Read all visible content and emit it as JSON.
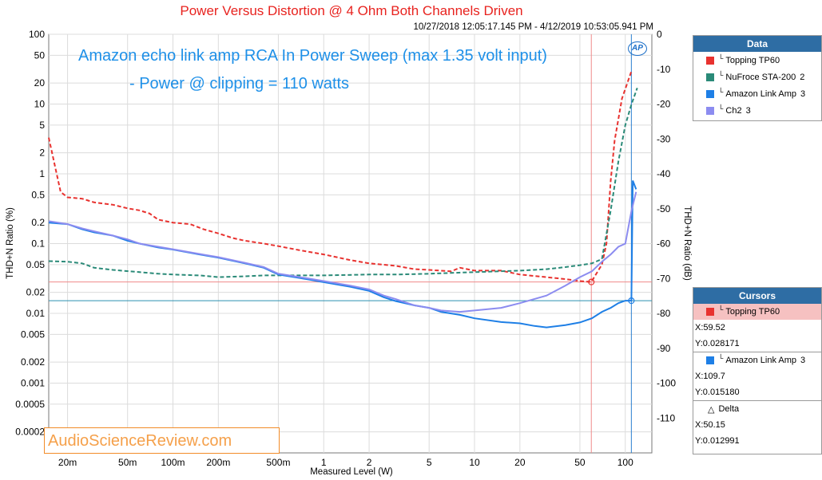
{
  "title": "Power Versus Distortion @ 4 Ohm Both Channels Driven",
  "timestamp": "10/27/2018 12:05:17.145 PM - 4/12/2019 10:53:05.941 PM",
  "annotation_line1": "Amazon echo link amp RCA In Power Sweep (max 1.35 volt input)",
  "annotation_line2": "- Power @ clipping = 110 watts",
  "watermark": "AudioScienceReview.com",
  "ap_logo": "AP",
  "legend": {
    "header": "Data",
    "items": [
      {
        "label": "Topping TP60",
        "index": "",
        "color": "#e8322f"
      },
      {
        "label": "NuFroce STA-200",
        "index": "2",
        "color": "#2a8a78"
      },
      {
        "label": "Amazon Link Amp",
        "index": "3",
        "color": "#1e7fe6"
      },
      {
        "label": "Ch2",
        "index": "3",
        "color": "#8c8cf0"
      }
    ]
  },
  "cursors": {
    "header": "Cursors",
    "c1": {
      "label": "Topping TP60",
      "x": "X:59.52",
      "y": "Y:0.028171",
      "color": "#e8322f"
    },
    "c2": {
      "label": "Amazon Link Amp",
      "index": "3",
      "x": "X:109.7",
      "y": "Y:0.015180",
      "color": "#1e7fe6"
    },
    "delta": {
      "label": "Delta",
      "x": "X:50.15",
      "y": "Y:0.012991"
    }
  },
  "chart_data": {
    "type": "line",
    "title": "Power Versus Distortion @ 4 Ohm Both Channels Driven",
    "xlabel": "Measured Level (W)",
    "ylabel": "THD+N Ratio (%)",
    "y2label": "THD+N Ratio (dB)",
    "xscale": "log",
    "yscale": "log",
    "xlim": [
      0.015,
      150
    ],
    "ylim": [
      0.0001,
      100
    ],
    "y2lim": [
      -120,
      0
    ],
    "xticks": [
      {
        "v": 0.02,
        "label": "20m"
      },
      {
        "v": 0.05,
        "label": "50m"
      },
      {
        "v": 0.1,
        "label": "100m"
      },
      {
        "v": 0.2,
        "label": "200m"
      },
      {
        "v": 0.5,
        "label": "500m"
      },
      {
        "v": 1,
        "label": "1"
      },
      {
        "v": 2,
        "label": "2"
      },
      {
        "v": 5,
        "label": "5"
      },
      {
        "v": 10,
        "label": "10"
      },
      {
        "v": 20,
        "label": "20"
      },
      {
        "v": 50,
        "label": "50"
      },
      {
        "v": 100,
        "label": "100"
      }
    ],
    "yticks": [
      {
        "v": 100,
        "label": "100"
      },
      {
        "v": 50,
        "label": "50"
      },
      {
        "v": 20,
        "label": "20"
      },
      {
        "v": 10,
        "label": "10"
      },
      {
        "v": 5,
        "label": "5"
      },
      {
        "v": 2,
        "label": "2"
      },
      {
        "v": 1,
        "label": "1"
      },
      {
        "v": 0.5,
        "label": "0.5"
      },
      {
        "v": 0.2,
        "label": "0.2"
      },
      {
        "v": 0.1,
        "label": "0.1"
      },
      {
        "v": 0.05,
        "label": "0.05"
      },
      {
        "v": 0.02,
        "label": "0.02"
      },
      {
        "v": 0.01,
        "label": "0.01"
      },
      {
        "v": 0.005,
        "label": "0.005"
      },
      {
        "v": 0.002,
        "label": "0.002"
      },
      {
        "v": 0.001,
        "label": "0.001"
      },
      {
        "v": 0.0005,
        "label": "0.0005"
      },
      {
        "v": 0.0002,
        "label": "0.0002"
      }
    ],
    "y2ticks": [
      {
        "v": 0,
        "label": "0"
      },
      {
        "v": -10,
        "label": "-10"
      },
      {
        "v": -20,
        "label": "-20"
      },
      {
        "v": -30,
        "label": "-30"
      },
      {
        "v": -40,
        "label": "-40"
      },
      {
        "v": -50,
        "label": "-50"
      },
      {
        "v": -60,
        "label": "-60"
      },
      {
        "v": -70,
        "label": "-70"
      },
      {
        "v": -80,
        "label": "-80"
      },
      {
        "v": -90,
        "label": "-90"
      },
      {
        "v": -100,
        "label": "-100"
      },
      {
        "v": -110,
        "label": "-110"
      }
    ],
    "grid": true,
    "legend_position": "right",
    "series": [
      {
        "name": "Topping TP60",
        "color": "#e8322f",
        "dash": true,
        "points": [
          [
            0.015,
            3.3
          ],
          [
            0.018,
            0.55
          ],
          [
            0.02,
            0.46
          ],
          [
            0.025,
            0.44
          ],
          [
            0.03,
            0.39
          ],
          [
            0.04,
            0.36
          ],
          [
            0.05,
            0.32
          ],
          [
            0.06,
            0.3
          ],
          [
            0.07,
            0.27
          ],
          [
            0.08,
            0.22
          ],
          [
            0.1,
            0.2
          ],
          [
            0.13,
            0.19
          ],
          [
            0.16,
            0.16
          ],
          [
            0.2,
            0.14
          ],
          [
            0.25,
            0.12
          ],
          [
            0.3,
            0.11
          ],
          [
            0.4,
            0.1
          ],
          [
            0.5,
            0.092
          ],
          [
            0.7,
            0.08
          ],
          [
            1.0,
            0.07
          ],
          [
            1.5,
            0.058
          ],
          [
            2,
            0.052
          ],
          [
            3,
            0.048
          ],
          [
            4,
            0.043
          ],
          [
            5,
            0.042
          ],
          [
            7,
            0.04
          ],
          [
            8,
            0.045
          ],
          [
            10,
            0.041
          ],
          [
            15,
            0.041
          ],
          [
            20,
            0.036
          ],
          [
            30,
            0.033
          ],
          [
            40,
            0.031
          ],
          [
            50,
            0.029
          ],
          [
            59.52,
            0.0282
          ],
          [
            70,
            0.05
          ],
          [
            75,
            0.1
          ],
          [
            80,
            0.8
          ],
          [
            85,
            3
          ],
          [
            95,
            12
          ],
          [
            110,
            30
          ]
        ]
      },
      {
        "name": "NuFroce STA-200",
        "color": "#2a8a78",
        "dash": true,
        "points": [
          [
            0.015,
            0.056
          ],
          [
            0.02,
            0.055
          ],
          [
            0.025,
            0.052
          ],
          [
            0.03,
            0.045
          ],
          [
            0.04,
            0.042
          ],
          [
            0.06,
            0.039
          ],
          [
            0.08,
            0.037
          ],
          [
            0.1,
            0.036
          ],
          [
            0.15,
            0.035
          ],
          [
            0.2,
            0.033
          ],
          [
            0.3,
            0.034
          ],
          [
            0.4,
            0.035
          ],
          [
            0.5,
            0.035
          ],
          [
            1,
            0.035
          ],
          [
            2,
            0.036
          ],
          [
            3,
            0.036
          ],
          [
            5,
            0.037
          ],
          [
            7,
            0.038
          ],
          [
            10,
            0.039
          ],
          [
            20,
            0.041
          ],
          [
            30,
            0.043
          ],
          [
            40,
            0.046
          ],
          [
            50,
            0.049
          ],
          [
            60,
            0.052
          ],
          [
            70,
            0.06
          ],
          [
            80,
            0.3
          ],
          [
            90,
            1.5
          ],
          [
            100,
            5
          ],
          [
            110,
            10
          ],
          [
            120,
            17
          ]
        ]
      },
      {
        "name": "Amazon Link Amp",
        "color": "#1e7fe6",
        "dash": false,
        "points": [
          [
            0.015,
            0.2
          ],
          [
            0.02,
            0.19
          ],
          [
            0.025,
            0.16
          ],
          [
            0.03,
            0.145
          ],
          [
            0.04,
            0.13
          ],
          [
            0.05,
            0.11
          ],
          [
            0.06,
            0.1
          ],
          [
            0.08,
            0.088
          ],
          [
            0.1,
            0.082
          ],
          [
            0.15,
            0.07
          ],
          [
            0.2,
            0.063
          ],
          [
            0.3,
            0.052
          ],
          [
            0.4,
            0.045
          ],
          [
            0.5,
            0.036
          ],
          [
            0.7,
            0.032
          ],
          [
            1,
            0.028
          ],
          [
            1.5,
            0.024
          ],
          [
            2,
            0.021
          ],
          [
            2.5,
            0.017
          ],
          [
            3,
            0.015
          ],
          [
            4,
            0.013
          ],
          [
            5,
            0.012
          ],
          [
            6,
            0.0105
          ],
          [
            8,
            0.0095
          ],
          [
            10,
            0.0085
          ],
          [
            15,
            0.0075
          ],
          [
            20,
            0.0072
          ],
          [
            25,
            0.0066
          ],
          [
            30,
            0.0063
          ],
          [
            40,
            0.0068
          ],
          [
            50,
            0.0074
          ],
          [
            60,
            0.0085
          ],
          [
            70,
            0.0105
          ],
          [
            80,
            0.012
          ],
          [
            90,
            0.014
          ],
          [
            100,
            0.0152
          ],
          [
            109.7,
            0.01518
          ],
          [
            112,
            0.8
          ],
          [
            118,
            0.6
          ]
        ]
      },
      {
        "name": "Ch2",
        "color": "#8c8cf0",
        "dash": false,
        "points": [
          [
            0.015,
            0.21
          ],
          [
            0.02,
            0.19
          ],
          [
            0.025,
            0.165
          ],
          [
            0.03,
            0.15
          ],
          [
            0.04,
            0.13
          ],
          [
            0.05,
            0.115
          ],
          [
            0.06,
            0.1
          ],
          [
            0.08,
            0.09
          ],
          [
            0.1,
            0.083
          ],
          [
            0.15,
            0.071
          ],
          [
            0.2,
            0.064
          ],
          [
            0.3,
            0.053
          ],
          [
            0.4,
            0.046
          ],
          [
            0.5,
            0.037
          ],
          [
            0.7,
            0.033
          ],
          [
            1,
            0.029
          ],
          [
            1.5,
            0.025
          ],
          [
            2,
            0.022
          ],
          [
            2.5,
            0.018
          ],
          [
            3,
            0.016
          ],
          [
            4,
            0.013
          ],
          [
            5,
            0.012
          ],
          [
            6,
            0.011
          ],
          [
            8,
            0.0105
          ],
          [
            10,
            0.011
          ],
          [
            15,
            0.012
          ],
          [
            20,
            0.014
          ],
          [
            30,
            0.018
          ],
          [
            40,
            0.025
          ],
          [
            50,
            0.033
          ],
          [
            60,
            0.04
          ],
          [
            70,
            0.055
          ],
          [
            80,
            0.07
          ],
          [
            90,
            0.09
          ],
          [
            100,
            0.1
          ],
          [
            110,
            0.3
          ],
          [
            118,
            0.55
          ]
        ]
      }
    ],
    "cursor_lines": [
      {
        "series": "Topping TP60",
        "x": 59.52,
        "y": 0.028171
      },
      {
        "series": "Amazon Link Amp",
        "x": 109.7,
        "y": 0.01518
      }
    ]
  }
}
